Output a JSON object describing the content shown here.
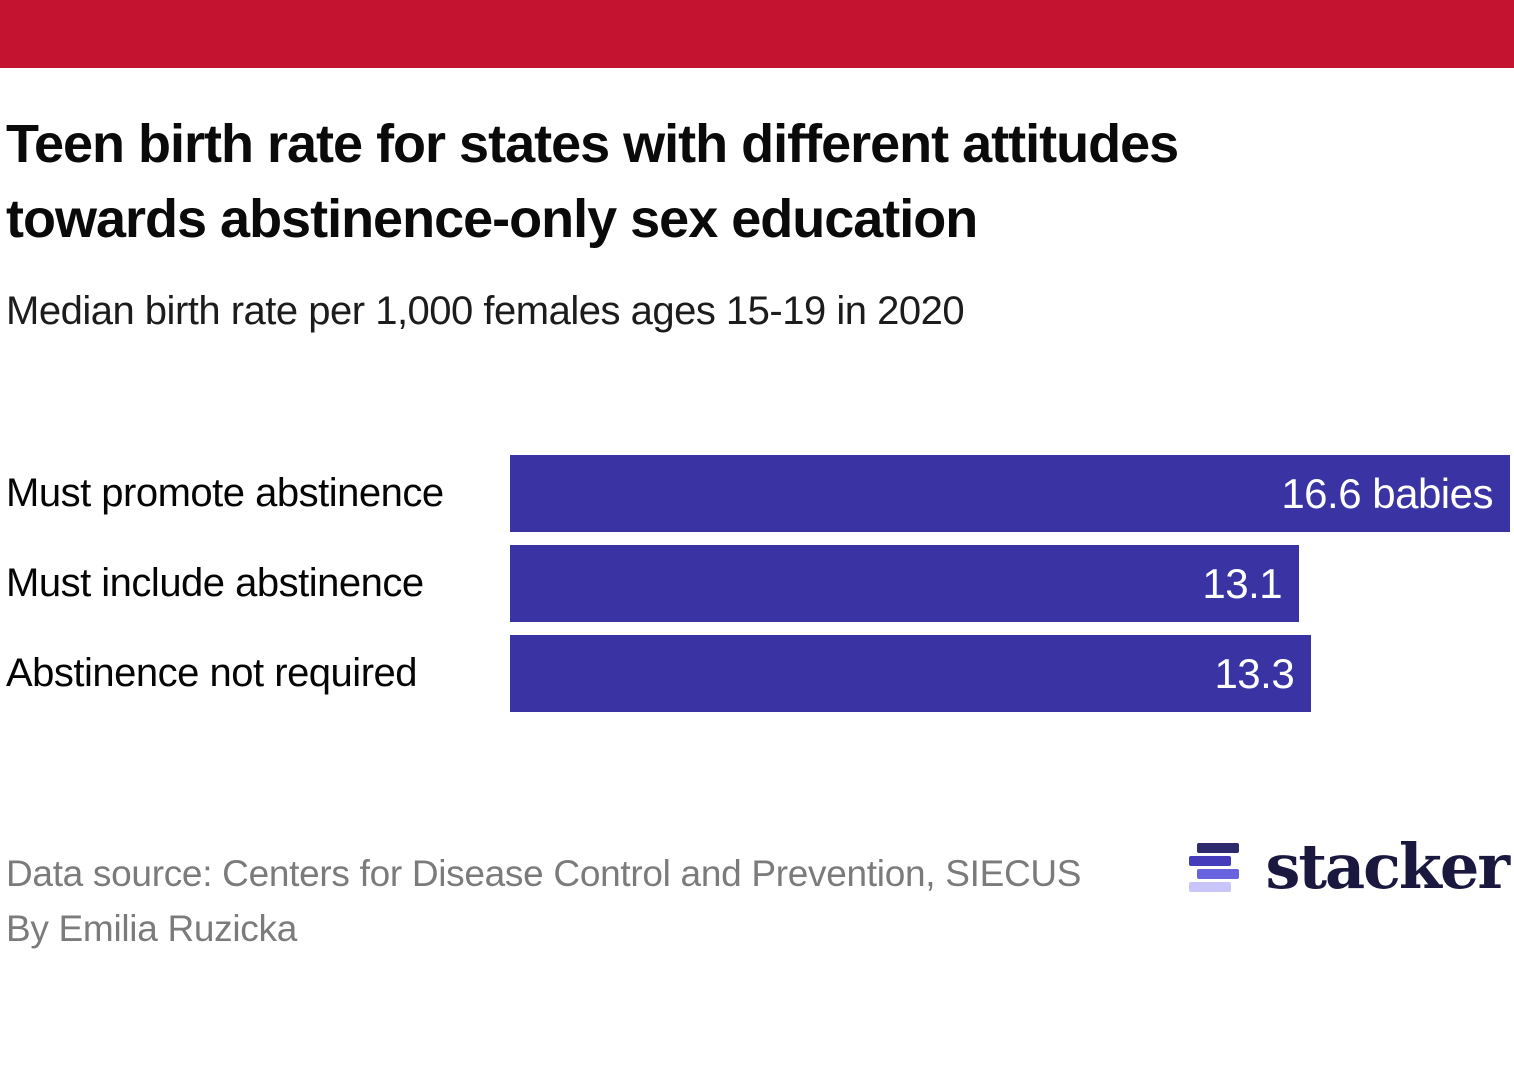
{
  "page": {
    "background": "#ffffff",
    "accent_bar_color": "#c41231"
  },
  "header": {
    "title_line1": "Teen birth rate for states with different attitudes",
    "title_line2": "towards abstinence-only sex education",
    "subtitle": "Median birth rate per 1,000 females ages 15-19 in 2020"
  },
  "chart_data": {
    "type": "bar",
    "orientation": "horizontal",
    "title": "Teen birth rate for states with different attitudes towards abstinence-only sex education",
    "subtitle": "Median birth rate per 1,000 females ages 15-19 in 2020",
    "categories": [
      "Must promote abstinence",
      "Must include abstinence",
      "Abstinence not required"
    ],
    "values": [
      16.6,
      13.1,
      13.3
    ],
    "value_labels": [
      "16.6 babies",
      "13.1",
      "13.3"
    ],
    "xlim": [
      0,
      16.6
    ],
    "bar_color": "#3933a3",
    "value_label_color": "#ffffff",
    "grid": false,
    "legend": "none"
  },
  "footer": {
    "source": "Data source: Centers for Disease Control and Prevention, SIECUS",
    "byline": "By Emilia Ruzicka"
  },
  "logo": {
    "wordmark": "stacker",
    "wordmark_color": "#1b1840",
    "icon_bar_colors": [
      "#2d2a6e",
      "#453cbc",
      "#6a63e0",
      "#c9c5f8"
    ]
  }
}
